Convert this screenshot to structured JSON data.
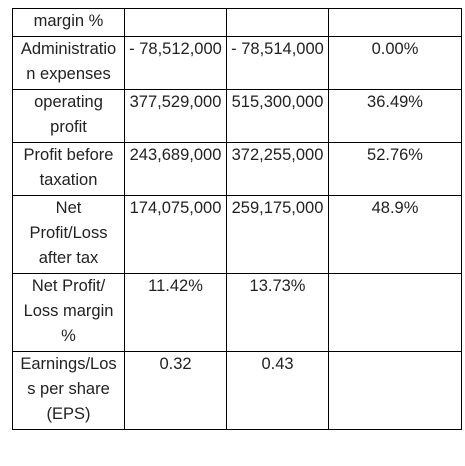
{
  "table": {
    "rows": [
      [
        "margin %",
        "",
        "",
        ""
      ],
      [
        "Administration expenses",
        "- 78,512,000",
        "- 78,514,000",
        "0.00%"
      ],
      [
        "operating profit",
        "377,529,000",
        "515,300,000",
        "36.49%"
      ],
      [
        "Profit before taxation",
        "243,689,000",
        "372,255,000",
        "52.76%"
      ],
      [
        "Net Profit/Loss after tax",
        "174,075,000",
        "259,175,000",
        "48.9%"
      ],
      [
        "Net Profit/ Loss margin %",
        "11.42%",
        "13.73%",
        ""
      ],
      [
        "Earnings/Loss per share (EPS)",
        "0.32",
        "0.43",
        ""
      ]
    ]
  }
}
